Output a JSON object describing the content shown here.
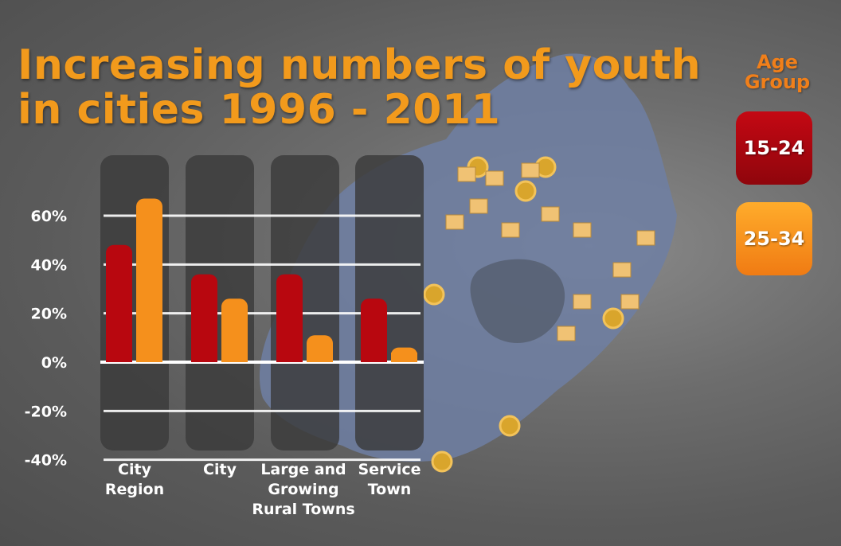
{
  "title_lines": [
    "Increasing numbers of youth",
    "in cities 1996 - 2011"
  ],
  "legend": {
    "title_lines": [
      "Age",
      "Group"
    ],
    "items": [
      {
        "label": "15-24",
        "color": "#b8070f"
      },
      {
        "label": "25-34",
        "color": "#f5901c"
      }
    ]
  },
  "colors": {
    "title": "#f29a1c",
    "panel": "#3a3a3a",
    "map_land": "#6f7fa3"
  },
  "chart_data": {
    "type": "bar",
    "categories": [
      [
        "City",
        "Region"
      ],
      [
        "City"
      ],
      [
        "Large and",
        "Growing",
        "Rural Towns"
      ],
      [
        "Service",
        "Town"
      ]
    ],
    "series": [
      {
        "name": "15-24",
        "values": [
          48,
          36,
          36,
          26
        ]
      },
      {
        "name": "25-34",
        "values": [
          67,
          26,
          11,
          6
        ]
      }
    ],
    "ylim": [
      -40,
      60
    ],
    "yticks": [
      60,
      40,
      20,
      0,
      -20,
      -40
    ],
    "ytick_labels": [
      "60%",
      "40%",
      "20%",
      "0%",
      "-20%",
      "-40%"
    ],
    "grid": true,
    "legend_position": "right"
  }
}
